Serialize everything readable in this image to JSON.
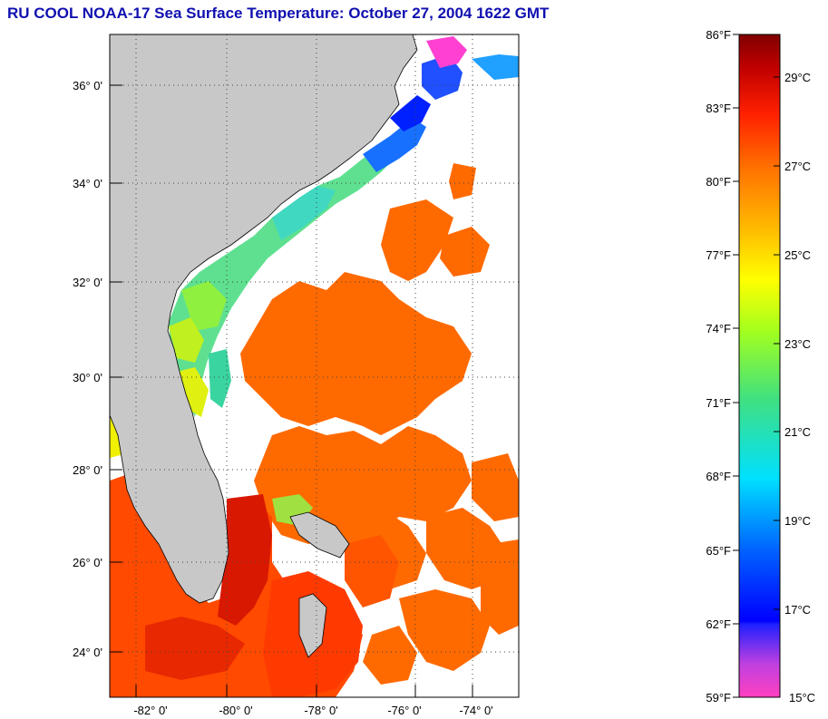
{
  "title": "RU COOL  NOAA-17  Sea Surface Temperature:  October 27, 2004 1622 GMT",
  "map": {
    "lat_labels": [
      "36° 0'",
      "34° 0'",
      "32° 0'",
      "30° 0'",
      "28° 0'",
      "26° 0'",
      "24° 0'"
    ],
    "lon_labels": [
      "-82° 0'",
      "-80° 0'",
      "-78° 0'",
      "-76° 0'",
      "-74° 0'"
    ],
    "colors": {
      "land": "#c8c8c8",
      "no_data": "#ffffff",
      "gulf_stream": "#ff6a00",
      "warm": "#e02000",
      "shelf": "#50e080"
    }
  },
  "colorbar": {
    "fahrenheit": [
      "86°F",
      "83°F",
      "80°F",
      "77°F",
      "74°F",
      "71°F",
      "68°F",
      "65°F",
      "62°F",
      "59°F"
    ],
    "celsius": [
      "29°C",
      "27°C",
      "25°C",
      "23°C",
      "21°C",
      "19°C",
      "17°C",
      "15°C"
    ]
  }
}
